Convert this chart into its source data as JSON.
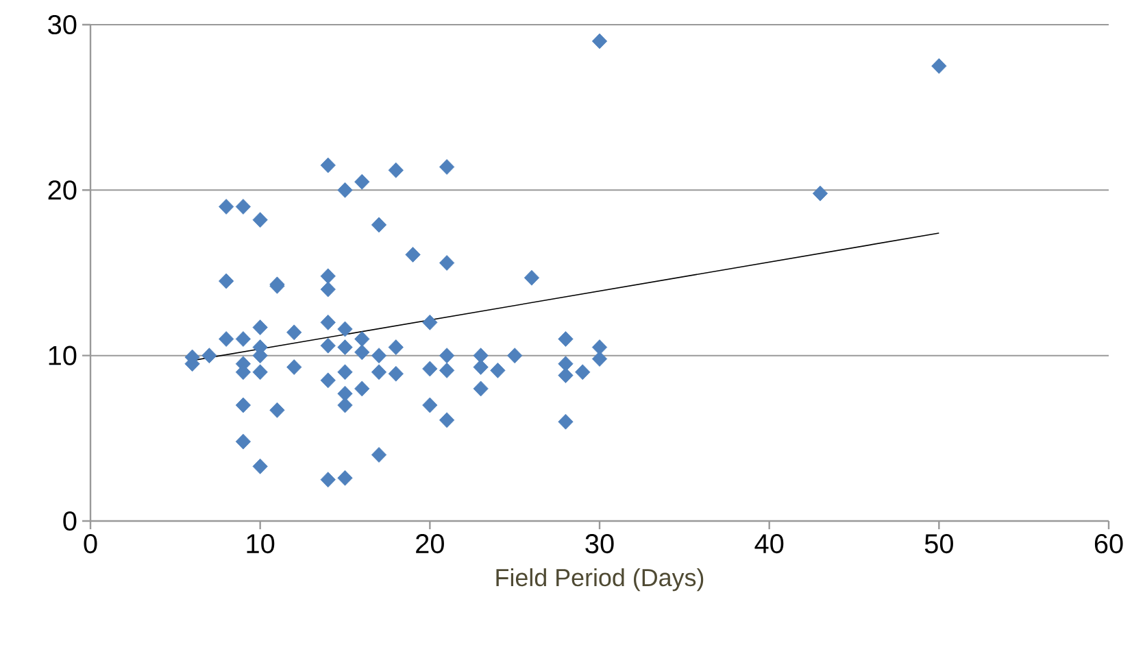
{
  "chart_data": {
    "type": "scatter",
    "xlabel": "Field Period (Days)",
    "xlim": [
      0,
      60
    ],
    "xticks": [
      0,
      10,
      20,
      30,
      40,
      50,
      60
    ],
    "ylim": [
      0,
      30
    ],
    "yticks": [
      0,
      10,
      20,
      30
    ],
    "grid": "y",
    "series": [
      {
        "marker": "diamond",
        "color": "#4f81bd",
        "x": [
          6,
          6,
          7,
          8,
          8,
          8,
          9,
          9,
          9,
          9,
          9,
          9,
          10,
          10,
          10,
          10,
          10,
          10,
          11,
          11,
          11,
          12,
          12,
          14,
          14,
          14,
          14,
          14,
          14,
          14,
          15,
          15,
          15,
          15,
          15,
          15,
          15,
          16,
          16,
          16,
          16,
          17,
          17,
          17,
          17,
          18,
          18,
          18,
          19,
          20,
          20,
          20,
          21,
          21,
          21,
          21,
          21,
          23,
          23,
          23,
          24,
          25,
          26,
          28,
          28,
          28,
          28,
          29,
          30,
          30,
          30,
          43,
          50
        ],
        "values": [
          9.5,
          9.9,
          10,
          19,
          14.5,
          11,
          19,
          11,
          9.5,
          9,
          7,
          4.8,
          18.2,
          11.7,
          10.5,
          10,
          9,
          3.3,
          14.3,
          14.2,
          6.7,
          11.4,
          9.3,
          21.5,
          14.8,
          14,
          12,
          10.6,
          8.5,
          2.5,
          20,
          11.6,
          10.5,
          9,
          7.7,
          7,
          2.6,
          20.5,
          11,
          10.2,
          8,
          17.9,
          10,
          9,
          4,
          21.2,
          10.5,
          8.9,
          16.1,
          12,
          9.2,
          7,
          21.4,
          15.6,
          10,
          9.1,
          6.1,
          10,
          9.3,
          8,
          9.1,
          10,
          14.7,
          11,
          9.5,
          8.8,
          6,
          9,
          10.5,
          9.8,
          29,
          19.8,
          27.5
        ]
      },
      {
        "type": "line",
        "marker": "none",
        "color": "#000000",
        "x": [
          6,
          50
        ],
        "values": [
          9.7,
          17.4
        ]
      }
    ]
  }
}
